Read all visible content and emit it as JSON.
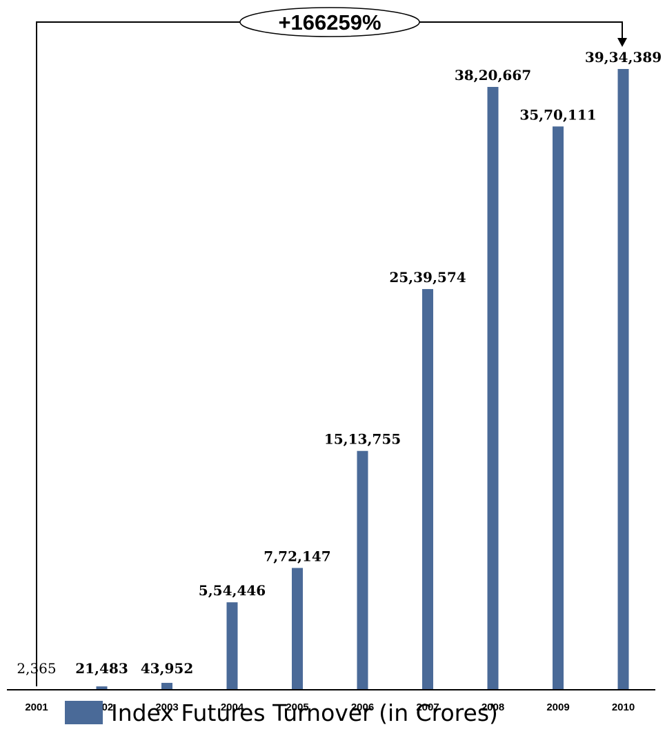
{
  "chart_data": {
    "type": "bar",
    "categories": [
      "2001",
      "2002",
      "2003",
      "2004",
      "2005",
      "2006",
      "2007",
      "2008",
      "2009",
      "2010"
    ],
    "values": [
      2365,
      21483,
      43952,
      554446,
      772147,
      1513755,
      2539574,
      3820667,
      3570111,
      3934389
    ],
    "value_labels": [
      "2,365",
      "21,483",
      "43,952",
      "5,54,446",
      "7,72,147",
      "15,13,755",
      "25,39,574",
      "38,20,667",
      "35,70,111",
      "39,34,389"
    ],
    "series": [
      {
        "name": "Index Futures Turnover (in Crores)",
        "values": [
          2365,
          21483,
          43952,
          554446,
          772147,
          1513755,
          2539574,
          3820667,
          3570111,
          3934389
        ]
      }
    ],
    "title": "",
    "xlabel": "",
    "ylabel": "",
    "ylim": [
      0,
      3934389
    ],
    "grid": false,
    "legend_position": "bottom",
    "annotation": "+166259%",
    "bar_color": "#4a6a98"
  }
}
